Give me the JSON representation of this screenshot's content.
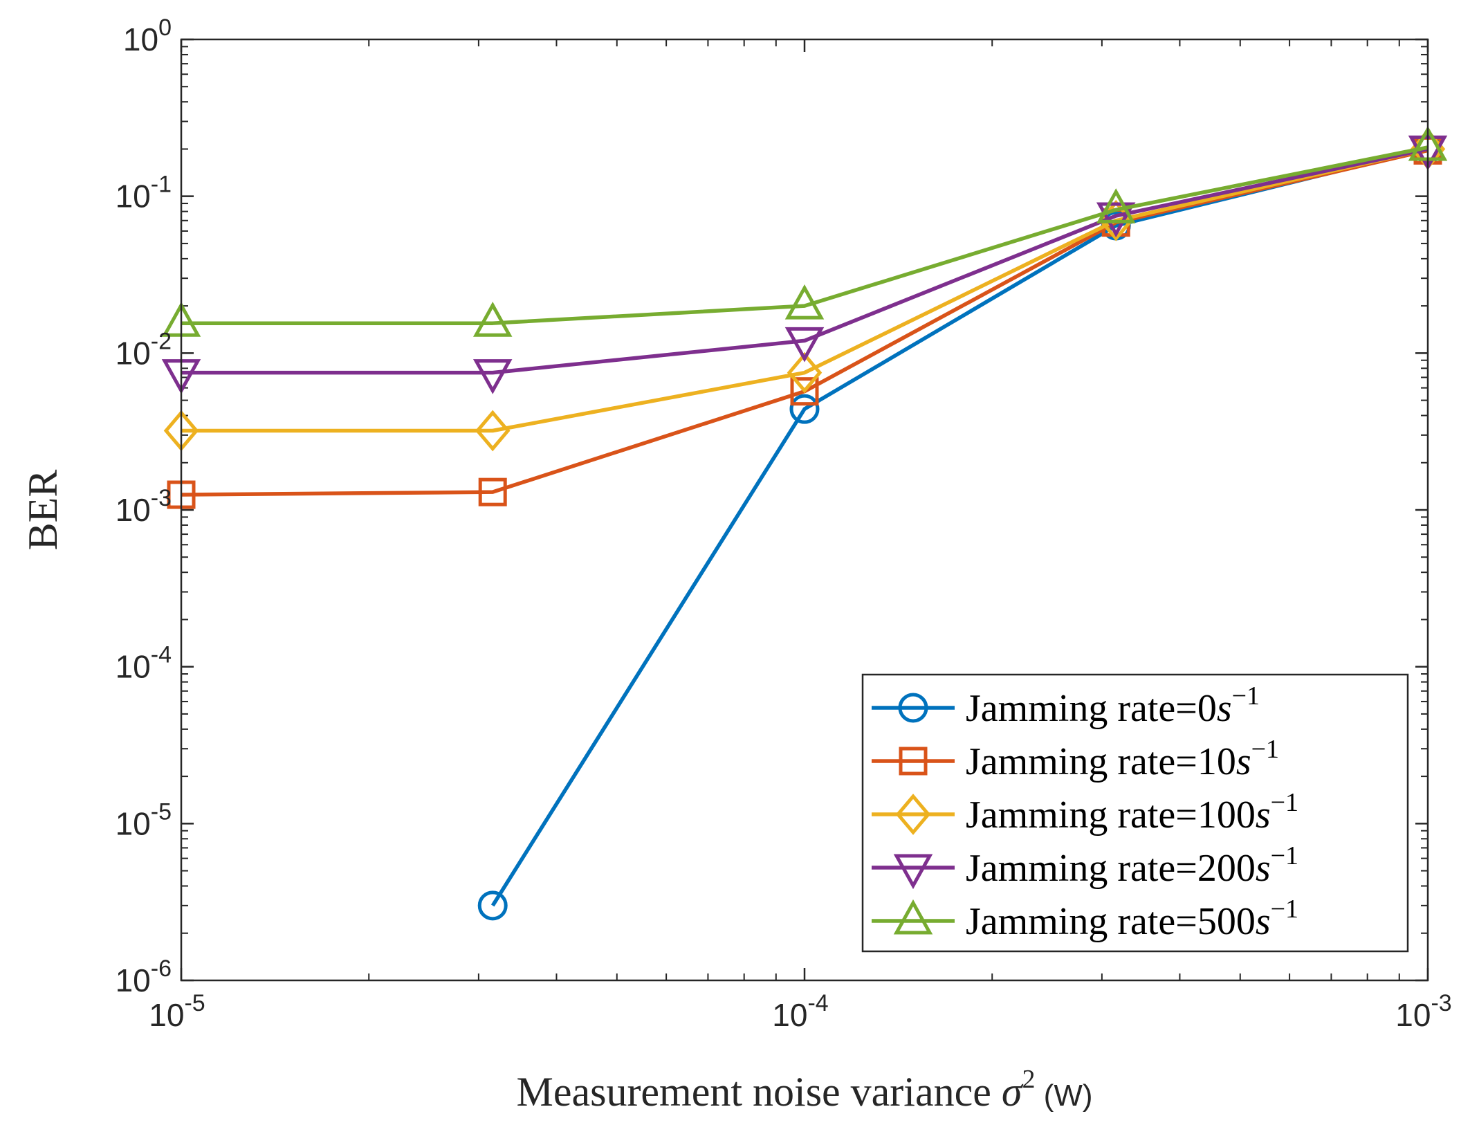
{
  "chart_data": {
    "type": "line",
    "title": "",
    "xlabel": {
      "main": "Measurement noise variance ",
      "symbol": "σ",
      "sup": "2",
      "unit": " (W)"
    },
    "ylabel": "BER",
    "xscale": "log",
    "yscale": "log",
    "xlim": [
      1e-05,
      0.001
    ],
    "ylim": [
      1e-06,
      1
    ],
    "x_ticks": [
      {
        "base": "10",
        "exp": "-5"
      },
      {
        "base": "10",
        "exp": "-4"
      },
      {
        "base": "10",
        "exp": "-3"
      }
    ],
    "y_ticks": [
      {
        "base": "10",
        "exp": "-6"
      },
      {
        "base": "10",
        "exp": "-5"
      },
      {
        "base": "10",
        "exp": "-4"
      },
      {
        "base": "10",
        "exp": "-3"
      },
      {
        "base": "10",
        "exp": "-2"
      },
      {
        "base": "10",
        "exp": "-1"
      },
      {
        "base": "10",
        "exp": "0"
      }
    ],
    "x": [
      1e-05,
      3.16e-05,
      0.0001,
      0.000316,
      0.001
    ],
    "series": [
      {
        "name": "Jamming rate=0",
        "unit_sym": "s",
        "unit_exp": "−1",
        "color": "#0072BD",
        "marker": "circle",
        "values": [
          null,
          3e-06,
          0.0044,
          0.065,
          0.2
        ]
      },
      {
        "name": "Jamming rate=10",
        "unit_sym": "s",
        "unit_exp": "−1",
        "color": "#D95319",
        "marker": "square",
        "values": [
          0.00125,
          0.0013,
          0.0057,
          0.068,
          0.196
        ]
      },
      {
        "name": "Jamming rate=100",
        "unit_sym": "s",
        "unit_exp": "−1",
        "color": "#EDB120",
        "marker": "diamond",
        "values": [
          0.0032,
          0.0032,
          0.0075,
          0.07,
          0.2
        ]
      },
      {
        "name": "Jamming rate=200",
        "unit_sym": "s",
        "unit_exp": "−1",
        "color": "#7E2F8E",
        "marker": "triangle-down",
        "values": [
          0.0075,
          0.0075,
          0.012,
          0.075,
          0.2
        ]
      },
      {
        "name": "Jamming rate=500",
        "unit_sym": "s",
        "unit_exp": "−1",
        "color": "#77AC30",
        "marker": "triangle-up",
        "values": [
          0.0155,
          0.0155,
          0.02,
          0.082,
          0.205
        ]
      }
    ],
    "legend_position": "bottom-right",
    "grid": false
  }
}
